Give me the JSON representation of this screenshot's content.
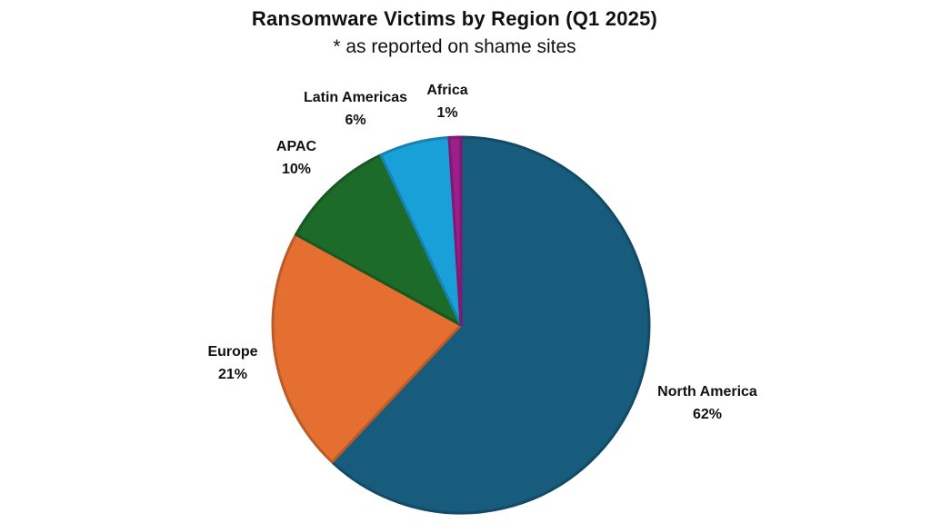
{
  "chart_data": {
    "type": "pie",
    "title": "Ransomware Victims by Region (Q1 2025)",
    "subtitle": "* as reported on shame sites",
    "slices": [
      {
        "name": "North America",
        "value": 62,
        "label": "62%",
        "color": "#175c7c"
      },
      {
        "name": "Europe",
        "value": 21,
        "label": "21%",
        "color": "#e46f31"
      },
      {
        "name": "APAC",
        "value": 10,
        "label": "10%",
        "color": "#1c6b29"
      },
      {
        "name": "Latin Americas",
        "value": 6,
        "label": "6%",
        "color": "#1aa0d8"
      },
      {
        "name": "Africa",
        "value": 1,
        "label": "1%",
        "color": "#9c1f8c"
      }
    ],
    "start_angle_deg": 0,
    "direction": "clockwise",
    "legend": "none",
    "data_labels": "outside"
  }
}
